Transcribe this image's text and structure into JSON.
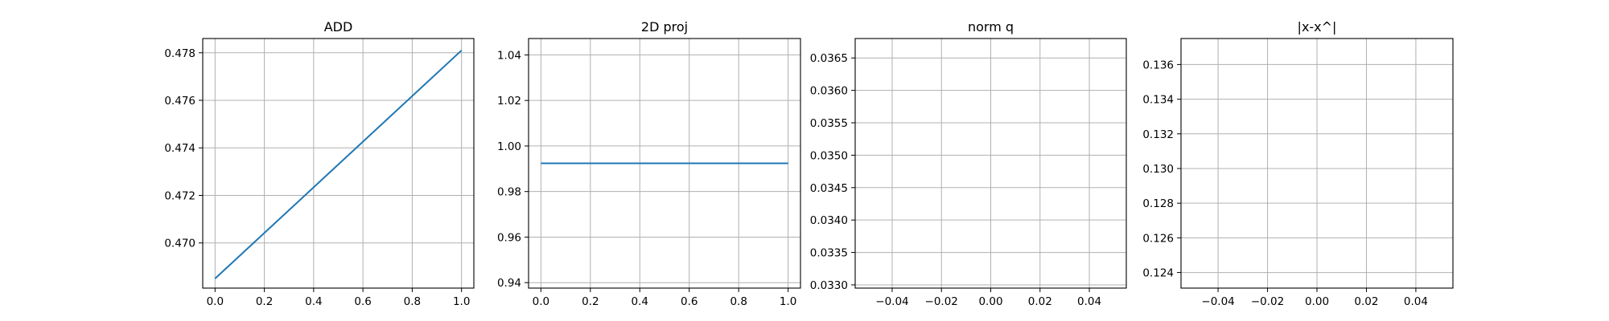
{
  "chart_data": [
    {
      "type": "line",
      "title": "ADD",
      "xlim": [
        -0.05,
        1.05
      ],
      "ylim": [
        0.4681,
        0.4786
      ],
      "xticks": [
        0.0,
        0.2,
        0.4,
        0.6,
        0.8,
        1.0
      ],
      "xtick_labels": [
        "0.0",
        "0.2",
        "0.4",
        "0.6",
        "0.8",
        "1.0"
      ],
      "yticks": [
        0.47,
        0.472,
        0.474,
        0.476,
        0.478
      ],
      "ytick_labels": [
        "0.470",
        "0.472",
        "0.474",
        "0.476",
        "0.478"
      ],
      "grid": true,
      "series": [
        {
          "x": [
            0.0,
            1.0
          ],
          "y": [
            0.4685,
            0.4781
          ]
        }
      ],
      "color": "#1f77b4"
    },
    {
      "type": "line",
      "title": "2D proj",
      "xlim": [
        -0.05,
        1.05
      ],
      "ylim": [
        0.9376,
        1.0472
      ],
      "xticks": [
        0.0,
        0.2,
        0.4,
        0.6,
        0.8,
        1.0
      ],
      "xtick_labels": [
        "0.0",
        "0.2",
        "0.4",
        "0.6",
        "0.8",
        "1.0"
      ],
      "yticks": [
        0.94,
        0.96,
        0.98,
        1.0,
        1.02,
        1.04
      ],
      "ytick_labels": [
        "0.94",
        "0.96",
        "0.98",
        "1.00",
        "1.02",
        "1.04"
      ],
      "grid": true,
      "series": [
        {
          "x": [
            0.0,
            1.0
          ],
          "y": [
            0.9924,
            0.9924
          ]
        }
      ],
      "color": "#1f77b4"
    },
    {
      "type": "line",
      "title": "norm q",
      "xlim": [
        -0.055,
        0.055
      ],
      "ylim": [
        0.03295,
        0.0368
      ],
      "xticks": [
        -0.04,
        -0.02,
        0.0,
        0.02,
        0.04
      ],
      "xtick_labels": [
        "−0.04",
        "−0.02",
        "0.00",
        "0.02",
        "0.04"
      ],
      "yticks": [
        0.033,
        0.0335,
        0.034,
        0.0345,
        0.035,
        0.0355,
        0.036,
        0.0365
      ],
      "ytick_labels": [
        "0.0330",
        "0.0335",
        "0.0340",
        "0.0345",
        "0.0350",
        "0.0355",
        "0.0360",
        "0.0365"
      ],
      "grid": true,
      "series": [],
      "color": "#1f77b4"
    },
    {
      "type": "line",
      "title": "|x-x^|",
      "xlim": [
        -0.055,
        0.055
      ],
      "ylim": [
        0.1231,
        0.1375
      ],
      "xticks": [
        -0.04,
        -0.02,
        0.0,
        0.02,
        0.04
      ],
      "xtick_labels": [
        "−0.04",
        "−0.02",
        "0.00",
        "0.02",
        "0.04"
      ],
      "yticks": [
        0.124,
        0.126,
        0.128,
        0.13,
        0.132,
        0.134,
        0.136
      ],
      "ytick_labels": [
        "0.124",
        "0.126",
        "0.128",
        "0.130",
        "0.132",
        "0.134",
        "0.136"
      ],
      "grid": true,
      "series": [],
      "color": "#1f77b4"
    }
  ]
}
